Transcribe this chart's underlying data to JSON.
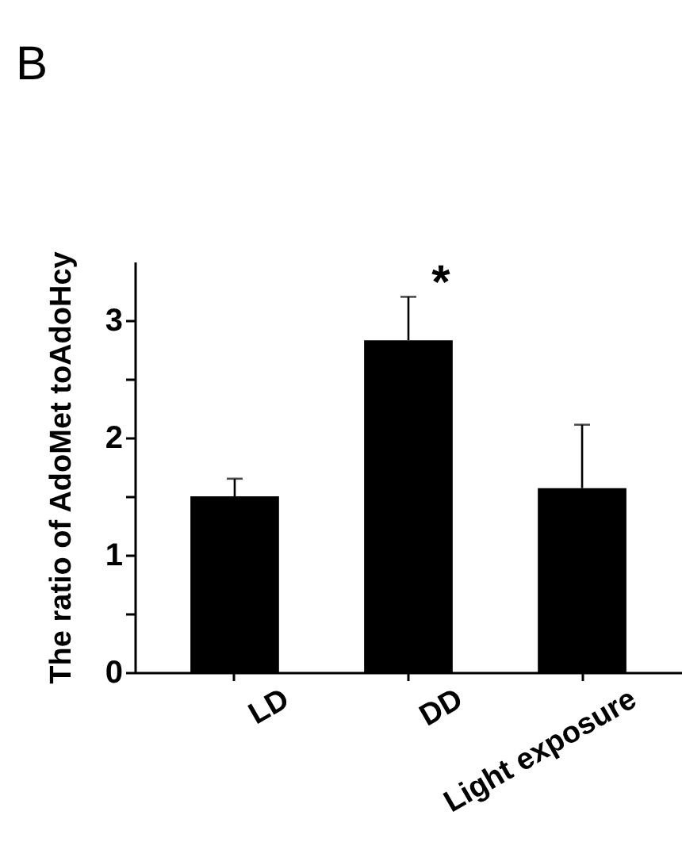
{
  "chart_data": {
    "type": "bar",
    "title": "B",
    "ylabel": "The ratio of AdoMet toAdoHcy",
    "categories": [
      "LD",
      "DD",
      "Light exposure"
    ],
    "values": [
      1.5,
      2.83,
      1.57
    ],
    "errors": [
      0.15,
      0.37,
      0.54
    ],
    "color": "#000000",
    "ylim": [
      0,
      3.5
    ],
    "yticks": [
      0,
      {
        "value": 0.5,
        "label": null
      },
      1,
      {
        "value": 1.5,
        "label": null
      },
      2,
      {
        "value": 2.5,
        "label": null
      },
      3
    ],
    "annotations": [
      "*"
    ],
    "grid": false
  }
}
